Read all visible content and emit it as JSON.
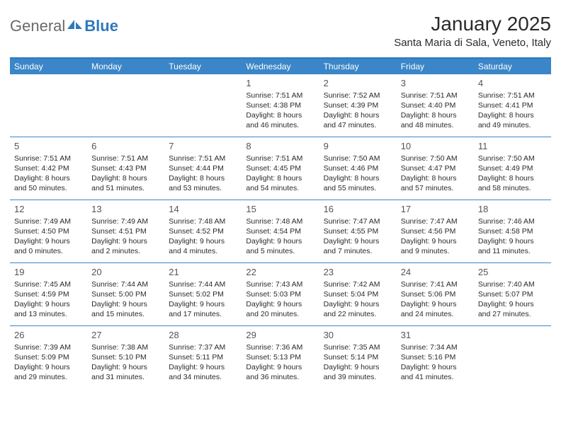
{
  "brand": {
    "part1": "General",
    "part2": "Blue"
  },
  "title": "January 2025",
  "location": "Santa Maria di Sala, Veneto, Italy",
  "colors": {
    "header_bar": "#3a86c8",
    "rule": "#3a86c8",
    "brand_gray": "#6a6a6a",
    "brand_blue": "#2f78bd",
    "text": "#2a2a2a",
    "background": "#ffffff"
  },
  "dow": [
    "Sunday",
    "Monday",
    "Tuesday",
    "Wednesday",
    "Thursday",
    "Friday",
    "Saturday"
  ],
  "weeks": [
    [
      null,
      null,
      null,
      {
        "n": "1",
        "sr": "7:51 AM",
        "ss": "4:38 PM",
        "dh": "8",
        "dm": "46"
      },
      {
        "n": "2",
        "sr": "7:52 AM",
        "ss": "4:39 PM",
        "dh": "8",
        "dm": "47"
      },
      {
        "n": "3",
        "sr": "7:51 AM",
        "ss": "4:40 PM",
        "dh": "8",
        "dm": "48"
      },
      {
        "n": "4",
        "sr": "7:51 AM",
        "ss": "4:41 PM",
        "dh": "8",
        "dm": "49"
      }
    ],
    [
      {
        "n": "5",
        "sr": "7:51 AM",
        "ss": "4:42 PM",
        "dh": "8",
        "dm": "50"
      },
      {
        "n": "6",
        "sr": "7:51 AM",
        "ss": "4:43 PM",
        "dh": "8",
        "dm": "51"
      },
      {
        "n": "7",
        "sr": "7:51 AM",
        "ss": "4:44 PM",
        "dh": "8",
        "dm": "53"
      },
      {
        "n": "8",
        "sr": "7:51 AM",
        "ss": "4:45 PM",
        "dh": "8",
        "dm": "54"
      },
      {
        "n": "9",
        "sr": "7:50 AM",
        "ss": "4:46 PM",
        "dh": "8",
        "dm": "55"
      },
      {
        "n": "10",
        "sr": "7:50 AM",
        "ss": "4:47 PM",
        "dh": "8",
        "dm": "57"
      },
      {
        "n": "11",
        "sr": "7:50 AM",
        "ss": "4:49 PM",
        "dh": "8",
        "dm": "58"
      }
    ],
    [
      {
        "n": "12",
        "sr": "7:49 AM",
        "ss": "4:50 PM",
        "dh": "9",
        "dm": "0"
      },
      {
        "n": "13",
        "sr": "7:49 AM",
        "ss": "4:51 PM",
        "dh": "9",
        "dm": "2"
      },
      {
        "n": "14",
        "sr": "7:48 AM",
        "ss": "4:52 PM",
        "dh": "9",
        "dm": "4"
      },
      {
        "n": "15",
        "sr": "7:48 AM",
        "ss": "4:54 PM",
        "dh": "9",
        "dm": "5"
      },
      {
        "n": "16",
        "sr": "7:47 AM",
        "ss": "4:55 PM",
        "dh": "9",
        "dm": "7"
      },
      {
        "n": "17",
        "sr": "7:47 AM",
        "ss": "4:56 PM",
        "dh": "9",
        "dm": "9"
      },
      {
        "n": "18",
        "sr": "7:46 AM",
        "ss": "4:58 PM",
        "dh": "9",
        "dm": "11"
      }
    ],
    [
      {
        "n": "19",
        "sr": "7:45 AM",
        "ss": "4:59 PM",
        "dh": "9",
        "dm": "13"
      },
      {
        "n": "20",
        "sr": "7:44 AM",
        "ss": "5:00 PM",
        "dh": "9",
        "dm": "15"
      },
      {
        "n": "21",
        "sr": "7:44 AM",
        "ss": "5:02 PM",
        "dh": "9",
        "dm": "17"
      },
      {
        "n": "22",
        "sr": "7:43 AM",
        "ss": "5:03 PM",
        "dh": "9",
        "dm": "20"
      },
      {
        "n": "23",
        "sr": "7:42 AM",
        "ss": "5:04 PM",
        "dh": "9",
        "dm": "22"
      },
      {
        "n": "24",
        "sr": "7:41 AM",
        "ss": "5:06 PM",
        "dh": "9",
        "dm": "24"
      },
      {
        "n": "25",
        "sr": "7:40 AM",
        "ss": "5:07 PM",
        "dh": "9",
        "dm": "27"
      }
    ],
    [
      {
        "n": "26",
        "sr": "7:39 AM",
        "ss": "5:09 PM",
        "dh": "9",
        "dm": "29"
      },
      {
        "n": "27",
        "sr": "7:38 AM",
        "ss": "5:10 PM",
        "dh": "9",
        "dm": "31"
      },
      {
        "n": "28",
        "sr": "7:37 AM",
        "ss": "5:11 PM",
        "dh": "9",
        "dm": "34"
      },
      {
        "n": "29",
        "sr": "7:36 AM",
        "ss": "5:13 PM",
        "dh": "9",
        "dm": "36"
      },
      {
        "n": "30",
        "sr": "7:35 AM",
        "ss": "5:14 PM",
        "dh": "9",
        "dm": "39"
      },
      {
        "n": "31",
        "sr": "7:34 AM",
        "ss": "5:16 PM",
        "dh": "9",
        "dm": "41"
      },
      null
    ]
  ],
  "labels": {
    "sunrise": "Sunrise:",
    "sunset": "Sunset:",
    "daylight": "Daylight:",
    "hours": "hours",
    "and": "and",
    "minutes": "minutes."
  }
}
